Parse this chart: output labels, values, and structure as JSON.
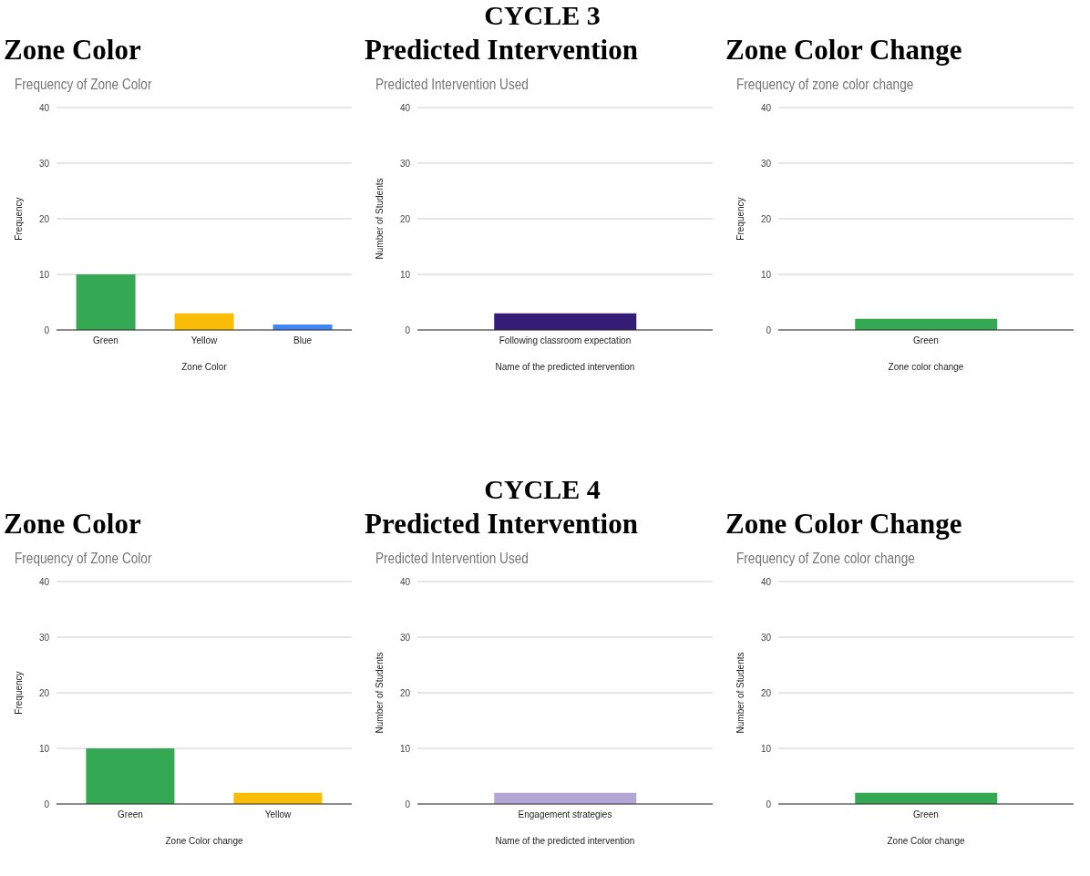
{
  "chart_data": [
    {
      "type": "bar",
      "title": "Zone Color",
      "subtitle": "Frequency of Zone Color",
      "categories": [
        "Green",
        "Yellow",
        "Blue"
      ],
      "values": [
        10,
        3,
        1
      ],
      "colors": [
        "#34a853",
        "#fbbc04",
        "#4285f4"
      ],
      "xlabel": "Zone Color",
      "ylabel": "Frequency",
      "ylim": [
        0,
        40
      ],
      "yticks": [
        0,
        10,
        20,
        30,
        40
      ],
      "grid": "y",
      "legend": false
    },
    {
      "type": "bar",
      "title": "Predicted Intervention",
      "subtitle": "Predicted Intervention Used",
      "annotations": [
        "CYCLE 3"
      ],
      "categories": [
        "Following classroom expectation"
      ],
      "values": [
        3
      ],
      "colors": [
        "#351c75"
      ],
      "xlabel": "Name of the predicted intervention",
      "ylabel": "Number of Students",
      "ylim": [
        0,
        40
      ],
      "yticks": [
        0,
        10,
        20,
        30,
        40
      ],
      "grid": "y",
      "legend": false
    },
    {
      "type": "bar",
      "title": "Zone Color Change",
      "subtitle": "Frequency of zone color change",
      "categories": [
        "Green"
      ],
      "values": [
        2
      ],
      "colors": [
        "#34a853"
      ],
      "xlabel": "Zone color change",
      "ylabel": "Frequency",
      "ylim": [
        0,
        40
      ],
      "yticks": [
        0,
        10,
        20,
        30,
        40
      ],
      "grid": "y",
      "legend": false
    },
    {
      "type": "bar",
      "title": "Zone Color",
      "subtitle": "Frequency of Zone Color",
      "categories": [
        "Green",
        "Yellow"
      ],
      "values": [
        10,
        2
      ],
      "colors": [
        "#34a853",
        "#fbbc04"
      ],
      "xlabel": "Zone Color change",
      "ylabel": "Frequency",
      "ylim": [
        0,
        40
      ],
      "yticks": [
        0,
        10,
        20,
        30,
        40
      ],
      "grid": "y",
      "legend": false
    },
    {
      "type": "bar",
      "title": "Predicted Intervention",
      "subtitle": "Predicted Intervention Used",
      "annotations": [
        "CYCLE 4"
      ],
      "categories": [
        "Engagement strategies"
      ],
      "values": [
        2
      ],
      "colors": [
        "#b4a7d6"
      ],
      "xlabel": "Name of the predicted intervention",
      "ylabel": "Number of Students",
      "ylim": [
        0,
        40
      ],
      "yticks": [
        0,
        10,
        20,
        30,
        40
      ],
      "grid": "y",
      "legend": false
    },
    {
      "type": "bar",
      "title": "Zone Color Change",
      "subtitle": "Frequency of Zone color change",
      "categories": [
        "Green"
      ],
      "values": [
        2
      ],
      "colors": [
        "#34a853"
      ],
      "xlabel": "Zone Color change",
      "ylabel": "Number of Students",
      "ylim": [
        0,
        40
      ],
      "yticks": [
        0,
        10,
        20,
        30,
        40
      ],
      "grid": "y",
      "legend": false
    }
  ]
}
